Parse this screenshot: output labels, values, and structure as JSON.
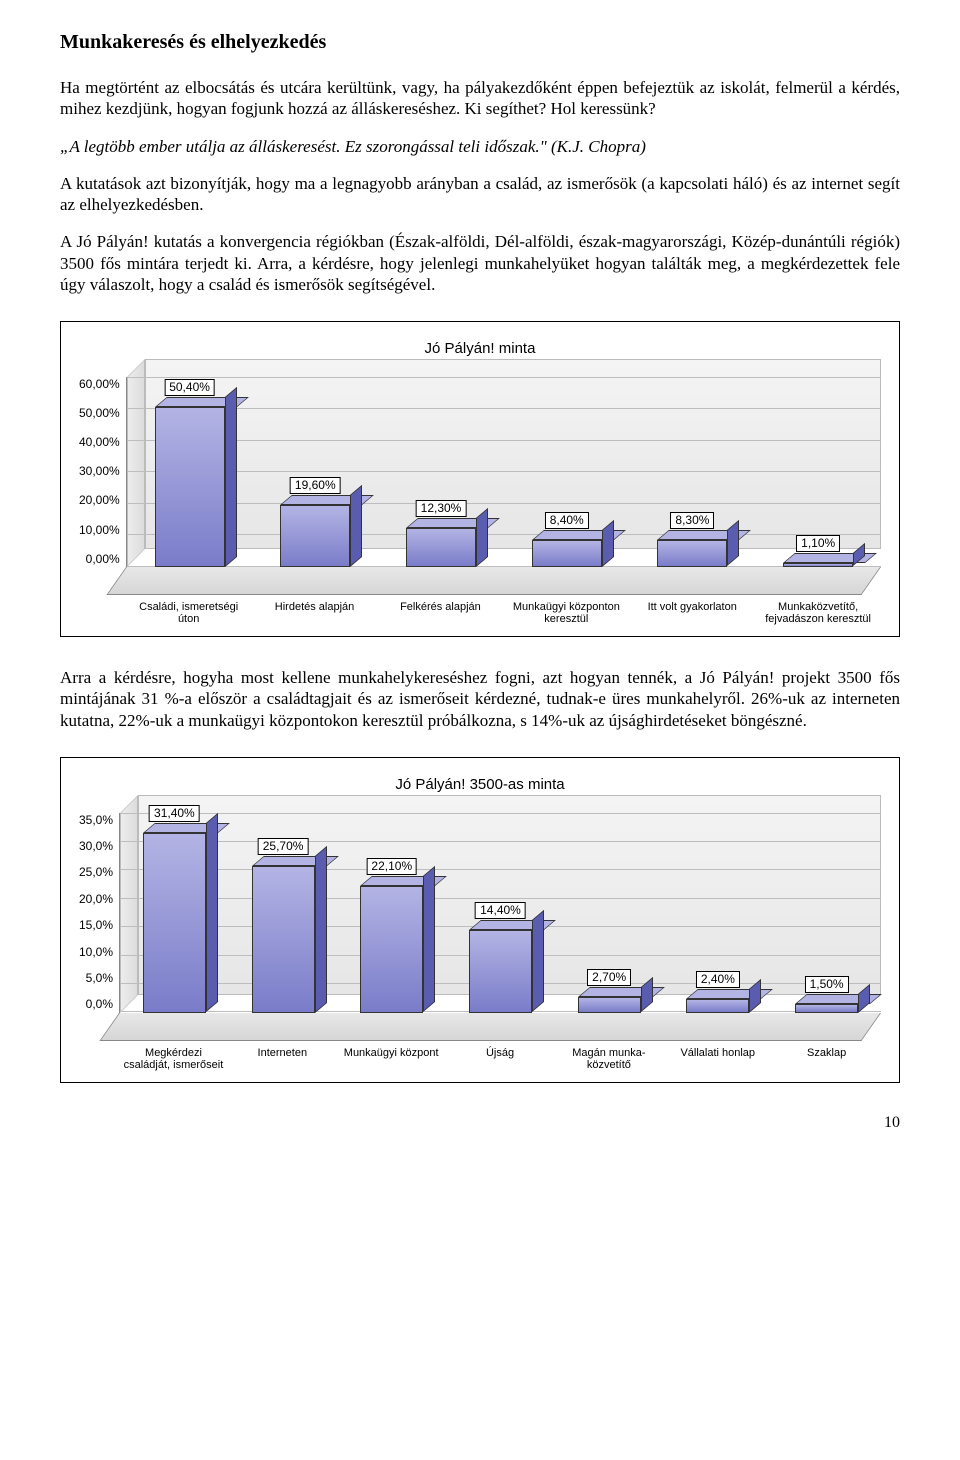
{
  "heading": "Munkakeresés és elhelyezkedés",
  "p1": "Ha megtörtént az elbocsátás és utcára kerültünk, vagy, ha pályakezdőként éppen befejeztük az iskolát, felmerül a kérdés, mihez kezdjünk, hogyan fogjunk hozzá az álláskereséshez. Ki segíthet? Hol keressünk?",
  "quote": "„A legtöbb ember utálja az álláskeresést. Ez szorongással teli időszak.\" (K.J. Chopra)",
  "p2": "A kutatások azt bizonyítják, hogy ma a legnagyobb arányban a család, az ismerősök (a kapcsolati háló) és az internet segít az elhelyezkedésben.",
  "p3": "A Jó Pályán! kutatás a konvergencia régiókban (Észak-alföldi, Dél-alföldi, észak-magyarországi, Közép-dunántúli régiók) 3500 fős mintára terjedt ki. Arra, a kérdésre, hogy jelenlegi munkahelyüket hogyan találták meg, a megkérdezettek fele úgy válaszolt, hogy a család és ismerősök segítségével.",
  "p4": "Arra a kérdésre, hogyha most kellene munkahelykereséshez fogni, azt hogyan tennék, a Jó Pályán! projekt 3500 fős mintájának 31 %-a először a családtagjait és az ismerőseit kérdezné, tudnak-e üres munkahelyről. 26%-uk az interneten kutatna, 22%-uk a munkaügyi központokon keresztül próbálkozna, s 14%-uk az újsághirdetéseket böngészné.",
  "page_number": "10",
  "chart1": {
    "type": "bar",
    "title": "Jó Pályán! minta",
    "ymax": 60,
    "yticks": [
      "60,00%",
      "50,00%",
      "40,00%",
      "30,00%",
      "20,00%",
      "10,00%",
      "0,00%"
    ],
    "bar_color_front": "#7a7cc9",
    "bar_color_top": "#b3b4e4",
    "bar_color_side": "#5a5cb0",
    "background_color": "#e8e8e8",
    "categories": [
      {
        "label": "Családi, ismeretségi úton",
        "value": 50.4,
        "value_label": "50,40%"
      },
      {
        "label": "Hirdetés alapján",
        "value": 19.6,
        "value_label": "19,60%"
      },
      {
        "label": "Felkérés alapján",
        "value": 12.3,
        "value_label": "12,30%"
      },
      {
        "label": "Munkaügyi központon keresztül",
        "value": 8.4,
        "value_label": "8,40%"
      },
      {
        "label": "Itt volt gyakorlaton",
        "value": 8.3,
        "value_label": "8,30%"
      },
      {
        "label": "Munkaközvetítő, fejvadászon keresztül",
        "value": 1.1,
        "value_label": "1,10%"
      }
    ]
  },
  "chart2": {
    "type": "bar",
    "title": "Jó Pályán! 3500-as minta",
    "ymax": 35,
    "yticks": [
      "35,0%",
      "30,0%",
      "25,0%",
      "20,0%",
      "15,0%",
      "10,0%",
      "5,0%",
      "0,0%"
    ],
    "bar_color_front": "#7a7cc9",
    "bar_color_top": "#b3b4e4",
    "bar_color_side": "#5a5cb0",
    "background_color": "#e8e8e8",
    "categories": [
      {
        "label": "Megkérdezi családját, ismerőseit",
        "value": 31.4,
        "value_label": "31,40%"
      },
      {
        "label": "Interneten",
        "value": 25.7,
        "value_label": "25,70%"
      },
      {
        "label": "Munkaügyi központ",
        "value": 22.1,
        "value_label": "22,10%"
      },
      {
        "label": "Újság",
        "value": 14.4,
        "value_label": "14,40%"
      },
      {
        "label": "Magán munka-közvetítő",
        "value": 2.7,
        "value_label": "2,70%"
      },
      {
        "label": "Vállalati honlap",
        "value": 2.4,
        "value_label": "2,40%"
      },
      {
        "label": "Szaklap",
        "value": 1.5,
        "value_label": "1,50%"
      }
    ]
  }
}
